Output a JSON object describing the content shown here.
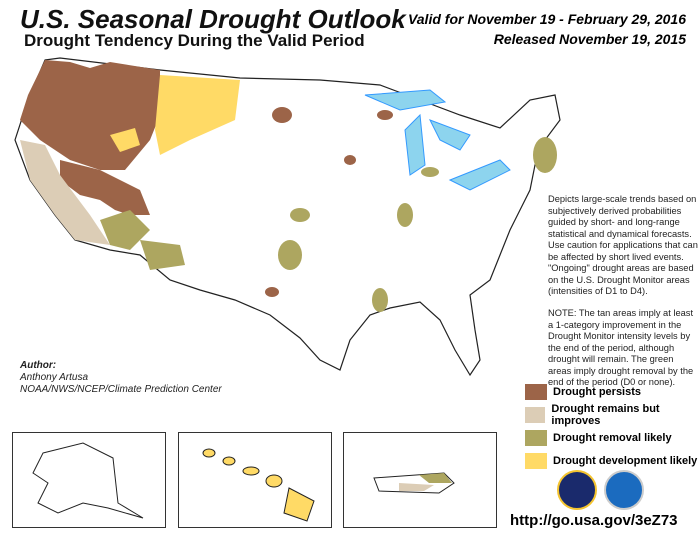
{
  "header": {
    "title": "U.S. Seasonal Drought Outlook",
    "subtitle": "Drought Tendency During the Valid Period",
    "valid": "Valid for November 19 - February 29, 2016",
    "released": "Released November 19, 2015"
  },
  "notes": {
    "p1": "Depicts large-scale trends based on subjectively derived probabilities guided by short- and long-range statistical and dynamical forecasts. Use caution for applications that can be affected by short lived events. \"Ongoing\" drought areas are based on the U.S. Drought Monitor areas (intensities of D1 to D4).",
    "p2": "NOTE: The tan areas imply at least a 1-category improvement in the Drought Monitor intensity levels by the end of the period, although drought will remain. The green areas imply drought removal by the end of the period (D0 or none)."
  },
  "author": {
    "label": "Author:",
    "name": "Anthony Artusa",
    "org": "NOAA/NWS/NCEP/Climate Prediction Center"
  },
  "legend": [
    {
      "label": "Drought persists",
      "color": "#9C6448"
    },
    {
      "label": "Drought remains but improves",
      "color": "#DCCDB6"
    },
    {
      "label": "Drought removal likely",
      "color": "#ADA660"
    },
    {
      "label": "Drought development likely",
      "color": "#FFDA66"
    }
  ],
  "insets": [
    "Alaska",
    "Hawaii",
    "Puerto Rico"
  ],
  "logos": [
    "nws-logo",
    "noaa-logo"
  ],
  "url": "http://go.usa.gov/3eZ73",
  "colors": {
    "water": "#8DD4EE",
    "rivers": "#3399FF",
    "state_lines": "#333333"
  }
}
